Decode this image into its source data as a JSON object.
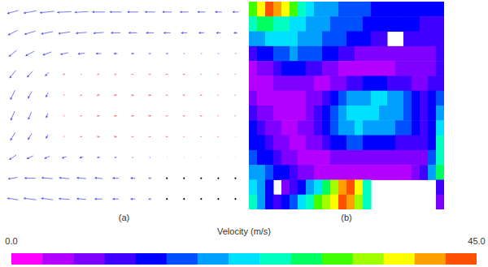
{
  "chart_data": [
    {
      "type": "vector_field",
      "label": "(a)",
      "tick_labels": false,
      "u": [
        [
          -14,
          -16,
          -18,
          -18,
          -17,
          -16,
          -15,
          -14,
          -13,
          -12,
          -11,
          -10,
          -9,
          -8
        ],
        [
          -12,
          -14,
          -15,
          -15,
          -14,
          -13,
          -12,
          -11,
          -10,
          -9,
          -8,
          -7,
          -6,
          -5
        ],
        [
          -10,
          -11,
          -11,
          -10,
          -9,
          -7,
          -5,
          -4,
          -3,
          -3,
          -2,
          -2,
          -2,
          -2
        ],
        [
          -8,
          -7,
          -5,
          -3,
          2,
          3,
          3,
          3,
          3,
          3,
          3,
          2,
          2,
          2
        ],
        [
          -6,
          -5,
          -3,
          1,
          3,
          4,
          4,
          4,
          4,
          3,
          3,
          3,
          2,
          2
        ],
        [
          -5,
          -4,
          -2,
          1,
          3,
          4,
          4,
          4,
          4,
          3,
          3,
          3,
          2,
          2
        ],
        [
          -6,
          -5,
          -3,
          0,
          3,
          4,
          4,
          3,
          3,
          3,
          2,
          2,
          2,
          1
        ],
        [
          -9,
          -8,
          -7,
          -6,
          -5,
          -4,
          -3,
          -2,
          -2,
          -1,
          -1,
          -1,
          1,
          1
        ],
        [
          -12,
          -14,
          -14,
          -13,
          -12,
          -10,
          -8,
          -6,
          -4,
          0,
          0,
          0,
          0,
          0
        ],
        [
          -14,
          -16,
          -15,
          -14,
          -12,
          -10,
          -8,
          -6,
          -4,
          0,
          0,
          0,
          0,
          0
        ]
      ],
      "v": [
        [
          -4,
          -3,
          -2,
          -1,
          -1,
          0,
          0,
          0,
          0,
          0,
          0,
          0,
          0,
          0
        ],
        [
          -6,
          -4,
          -3,
          -2,
          -1,
          -1,
          0,
          0,
          0,
          0,
          0,
          0,
          0,
          0
        ],
        [
          -8,
          -6,
          -4,
          -2,
          -1,
          0,
          0,
          0,
          0,
          0,
          0,
          0,
          0,
          0
        ],
        [
          -10,
          -8,
          -5,
          -2,
          0,
          1,
          1,
          0,
          0,
          0,
          0,
          0,
          0,
          0
        ],
        [
          -12,
          -9,
          -6,
          -2,
          1,
          1,
          1,
          0,
          0,
          0,
          0,
          0,
          0,
          0
        ],
        [
          -12,
          -10,
          -6,
          -2,
          0,
          0,
          0,
          0,
          0,
          0,
          0,
          0,
          0,
          0
        ],
        [
          -10,
          -8,
          -5,
          -2,
          0,
          -1,
          -1,
          0,
          0,
          0,
          0,
          0,
          0,
          0
        ],
        [
          -6,
          -4,
          -3,
          -2,
          -1,
          -1,
          -1,
          0,
          0,
          0,
          0,
          0,
          0,
          0
        ],
        [
          -2,
          0,
          1,
          1,
          1,
          1,
          0,
          0,
          0,
          0,
          0,
          0,
          0,
          0
        ],
        [
          2,
          2,
          2,
          1,
          1,
          0,
          0,
          0,
          0,
          0,
          0,
          0,
          0,
          0
        ]
      ],
      "colors": [
        [
          "#55e",
          "#55e",
          "#55e",
          "#55e",
          "#55e",
          "#55e",
          "#55e",
          "#55e",
          "#55e",
          "#55e",
          "#55e",
          "#55e",
          "#55e",
          "#55e"
        ],
        [
          "#55e",
          "#55e",
          "#55e",
          "#55e",
          "#55e",
          "#55e",
          "#55e",
          "#55e",
          "#55e",
          "#55e",
          "#55e",
          "#55e",
          "#55e",
          "#55e"
        ],
        [
          "#55e",
          "#55e",
          "#55e",
          "#55e",
          "#55e",
          "#55e",
          "#55e",
          "#55e",
          "#55e",
          "#55e",
          "#55e",
          "#55e",
          "#55e",
          "#55e"
        ],
        [
          "#55e",
          "#55e",
          "#55e",
          "#e66",
          "#e66",
          "#e66",
          "#e66",
          "#e66",
          "#e66",
          "#e66",
          "#e66",
          "#e66",
          "#e66",
          "#e66"
        ],
        [
          "#55e",
          "#55e",
          "#55e",
          "#e66",
          "#e66",
          "#e66",
          "#e66",
          "#e66",
          "#e66",
          "#e66",
          "#e66",
          "#e66",
          "#e66",
          "#e66"
        ],
        [
          "#55e",
          "#55e",
          "#55e",
          "#e66",
          "#e66",
          "#e66",
          "#e66",
          "#e66",
          "#e66",
          "#e66",
          "#e66",
          "#e66",
          "#e66",
          "#e66"
        ],
        [
          "#55e",
          "#55e",
          "#55e",
          "#e66",
          "#e66",
          "#e66",
          "#e66",
          "#e66",
          "#e66",
          "#e66",
          "#e66",
          "#e66",
          "#e66",
          "#e66"
        ],
        [
          "#55e",
          "#55e",
          "#55e",
          "#55e",
          "#55e",
          "#55e",
          "#55e",
          "#55e",
          "#55e",
          "#e66",
          "#e66",
          "#e66",
          "#e66",
          "#e66"
        ],
        [
          "#55e",
          "#55e",
          "#55e",
          "#55e",
          "#55e",
          "#55e",
          "#55e",
          "#55e",
          "#55e",
          "#000",
          "#000",
          "#000",
          "#000",
          "#000"
        ],
        [
          "#55e",
          "#55e",
          "#55e",
          "#55e",
          "#55e",
          "#55e",
          "#55e",
          "#55e",
          "#55e",
          "#000",
          "#000",
          "#000",
          "#000",
          "#000"
        ]
      ]
    },
    {
      "type": "contour",
      "label": "(b)",
      "tick_labels": false,
      "cells": [
        [
          30,
          38,
          42,
          40,
          36,
          30,
          25,
          22,
          20,
          19,
          18,
          17,
          16,
          15,
          15,
          14,
          14,
          13,
          13,
          13,
          12,
          12,
          12,
          12
        ],
        [
          26,
          28,
          27,
          26,
          24,
          22,
          21,
          20,
          19,
          18,
          17,
          16,
          15,
          15,
          14,
          13,
          13,
          13,
          12,
          12,
          12,
          11,
          11,
          11
        ],
        [
          18,
          20,
          21,
          22,
          22,
          21,
          20,
          19,
          18,
          17,
          16,
          15,
          14,
          13,
          12,
          11,
          10,
          null,
          null,
          10,
          10,
          10,
          10,
          10
        ],
        [
          10,
          12,
          14,
          16,
          17,
          18,
          17,
          16,
          15,
          13,
          12,
          10,
          9,
          8,
          8,
          7,
          7,
          7,
          7,
          7,
          7,
          8,
          8,
          9
        ],
        [
          5,
          6,
          8,
          10,
          12,
          13,
          12,
          11,
          9,
          7,
          6,
          5,
          5,
          5,
          5,
          5,
          5,
          5,
          6,
          6,
          6,
          7,
          8,
          9
        ],
        [
          4,
          4,
          5,
          6,
          7,
          7,
          7,
          6,
          5,
          5,
          6,
          8,
          10,
          11,
          12,
          12,
          12,
          11,
          10,
          9,
          8,
          8,
          9,
          10
        ],
        [
          6,
          5,
          4,
          4,
          4,
          5,
          5,
          6,
          8,
          10,
          13,
          16,
          18,
          19,
          20,
          21,
          21,
          20,
          18,
          15,
          12,
          10,
          12,
          16
        ],
        [
          9,
          8,
          6,
          5,
          4,
          4,
          5,
          7,
          10,
          13,
          16,
          19,
          21,
          22,
          22,
          21,
          20,
          20,
          19,
          17,
          14,
          11,
          14,
          20
        ],
        [
          12,
          10,
          8,
          6,
          5,
          5,
          6,
          8,
          10,
          13,
          16,
          18,
          20,
          21,
          20,
          20,
          19,
          18,
          17,
          15,
          12,
          10,
          14,
          22
        ],
        [
          14,
          12,
          10,
          8,
          6,
          5,
          5,
          6,
          8,
          10,
          12,
          14,
          15,
          15,
          14,
          14,
          13,
          12,
          11,
          10,
          9,
          9,
          14,
          24
        ],
        [
          16,
          14,
          12,
          10,
          8,
          6,
          5,
          4,
          4,
          5,
          6,
          7,
          8,
          8,
          7,
          7,
          6,
          6,
          6,
          6,
          6,
          8,
          15,
          26
        ],
        [
          20,
          18,
          16,
          14,
          12,
          10,
          8,
          6,
          5,
          4,
          4,
          4,
          5,
          5,
          5,
          5,
          5,
          5,
          5,
          5,
          6,
          9,
          18,
          28
        ],
        [
          22,
          18,
          12,
          null,
          8,
          10,
          14,
          18,
          22,
          28,
          34,
          40,
          42,
          36,
          24,
          null,
          null,
          null,
          null,
          null,
          null,
          null,
          null,
          10
        ],
        [
          24,
          20,
          14,
          10,
          12,
          16,
          22,
          26,
          30,
          34,
          38,
          42,
          40,
          34,
          26,
          null,
          null,
          null,
          null,
          null,
          null,
          null,
          null,
          8
        ]
      ],
      "colorbar": {
        "title": "Velocity (m/s)",
        "range": [
          0,
          45
        ],
        "ticks": [
          {
            "value": 0,
            "label": "0.0"
          },
          {
            "value": 45,
            "label": "45.0"
          }
        ],
        "colors": [
          "#ff00ff",
          "#b400ff",
          "#8000ff",
          "#4000ff",
          "#0000ff",
          "#0050ff",
          "#00a0ff",
          "#00e0ff",
          "#00ffc0",
          "#00ff60",
          "#40ff00",
          "#a0ff00",
          "#ffff00",
          "#ffa000",
          "#ff5000"
        ]
      }
    }
  ]
}
